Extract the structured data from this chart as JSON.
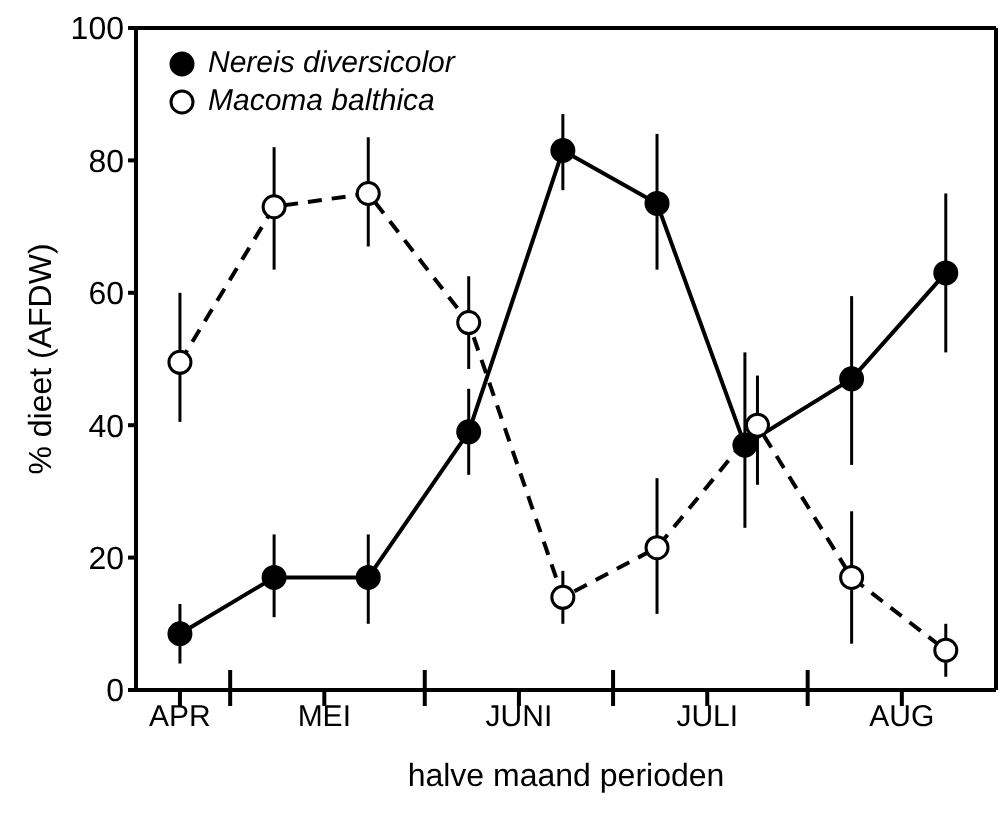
{
  "chart_data": {
    "type": "line",
    "xlabel": "halve maand perioden",
    "ylabel": "% dieet (AFDW)",
    "xlim": [
      "--04-16",
      "--08-31"
    ],
    "xticks": [
      {
        "value": "--04-23",
        "label": "APR"
      },
      {
        "value": "--05-01",
        "label": null
      },
      {
        "value": "--05-16",
        "label": "MEI"
      },
      {
        "value": "--06-01",
        "label": null
      },
      {
        "value": "--06-16",
        "label": "JUNI"
      },
      {
        "value": "--07-01",
        "label": null
      },
      {
        "value": "--07-16",
        "label": "JULI"
      },
      {
        "value": "--08-01",
        "label": null
      },
      {
        "value": "--08-16",
        "label": "AUG"
      }
    ],
    "ylim": [
      0,
      100
    ],
    "yticks": [
      0,
      20,
      40,
      60,
      80,
      100
    ],
    "legend": "top left",
    "marker": "circle",
    "series": [
      {
        "name": "Nereis diversicolor",
        "color": "#000000",
        "line_style": "solid",
        "x": [
          "--04-23",
          "--05-08",
          "--05-23",
          "--06-08",
          "--06-23",
          "--07-08",
          "--07-22",
          "--08-08",
          "--08-23"
        ],
        "values": [
          8.5,
          17,
          17,
          39,
          81.5,
          73.5,
          37,
          47,
          63
        ],
        "errors": [
          [
            4,
            13
          ],
          [
            11,
            23.5
          ],
          [
            10,
            23.5
          ],
          [
            32.5,
            45.5
          ],
          [
            75.5,
            87
          ],
          [
            63.5,
            84
          ],
          [
            24.5,
            51
          ],
          [
            34,
            59.5
          ],
          [
            51,
            75
          ]
        ]
      },
      {
        "name": "Macoma balthica",
        "color": "#000000",
        "line_style": "dashed",
        "x": [
          "--04-23",
          "--05-08",
          "--05-23",
          "--06-08",
          "--06-23",
          "--07-08",
          "--07-24",
          "--08-08",
          "--08-23"
        ],
        "values": [
          49.5,
          73,
          75,
          55.5,
          14,
          21.5,
          40,
          17,
          6
        ],
        "errors": [
          [
            40.5,
            60
          ],
          [
            63.5,
            82
          ],
          [
            67,
            83.5
          ],
          [
            48.5,
            62.5
          ],
          [
            10,
            18
          ],
          [
            11.5,
            32
          ],
          [
            31,
            47.5
          ],
          [
            7,
            27
          ],
          [
            2,
            10
          ]
        ]
      }
    ]
  }
}
